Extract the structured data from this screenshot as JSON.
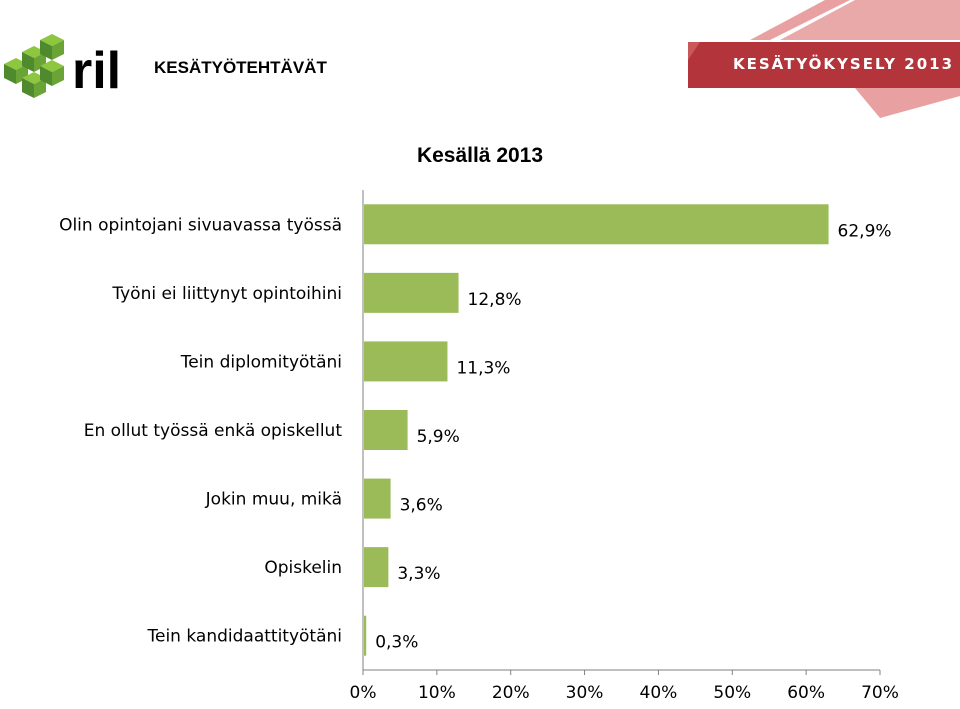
{
  "header": {
    "title": "KESÄTYÖTEHTÄVÄT",
    "banner_text": "KESÄTYÖKYSELY 2013",
    "logo_text": "ril"
  },
  "colors": {
    "bar": "#9bbb59",
    "logo_green_dark": "#4f8a2f",
    "logo_green_light": "#8dc63f",
    "banner_red": "#b3343a",
    "banner_pink": "#e8a0a0",
    "axis": "#808080"
  },
  "chart_data": {
    "type": "bar",
    "orientation": "horizontal",
    "title": "Kesällä 2013",
    "categories": [
      "Olin opintojani sivuavassa työssä",
      "Työni ei liittynyt opintoihini",
      "Tein diplomityötäni",
      "En ollut työssä enkä opiskellut",
      "Jokin muu, mikä",
      "Opiskelin",
      "Tein kandidaattityötäni"
    ],
    "values": [
      62.9,
      12.8,
      11.3,
      5.9,
      3.6,
      3.3,
      0.3
    ],
    "value_labels": [
      "62,9%",
      "12,8%",
      "11,3%",
      "5,9%",
      "3,6%",
      "3,3%",
      "0,3%"
    ],
    "xlim": [
      0,
      70
    ],
    "x_ticks": [
      "0%",
      "10%",
      "20%",
      "30%",
      "40%",
      "50%",
      "60%",
      "70%"
    ],
    "grid": false,
    "legend": "none"
  }
}
